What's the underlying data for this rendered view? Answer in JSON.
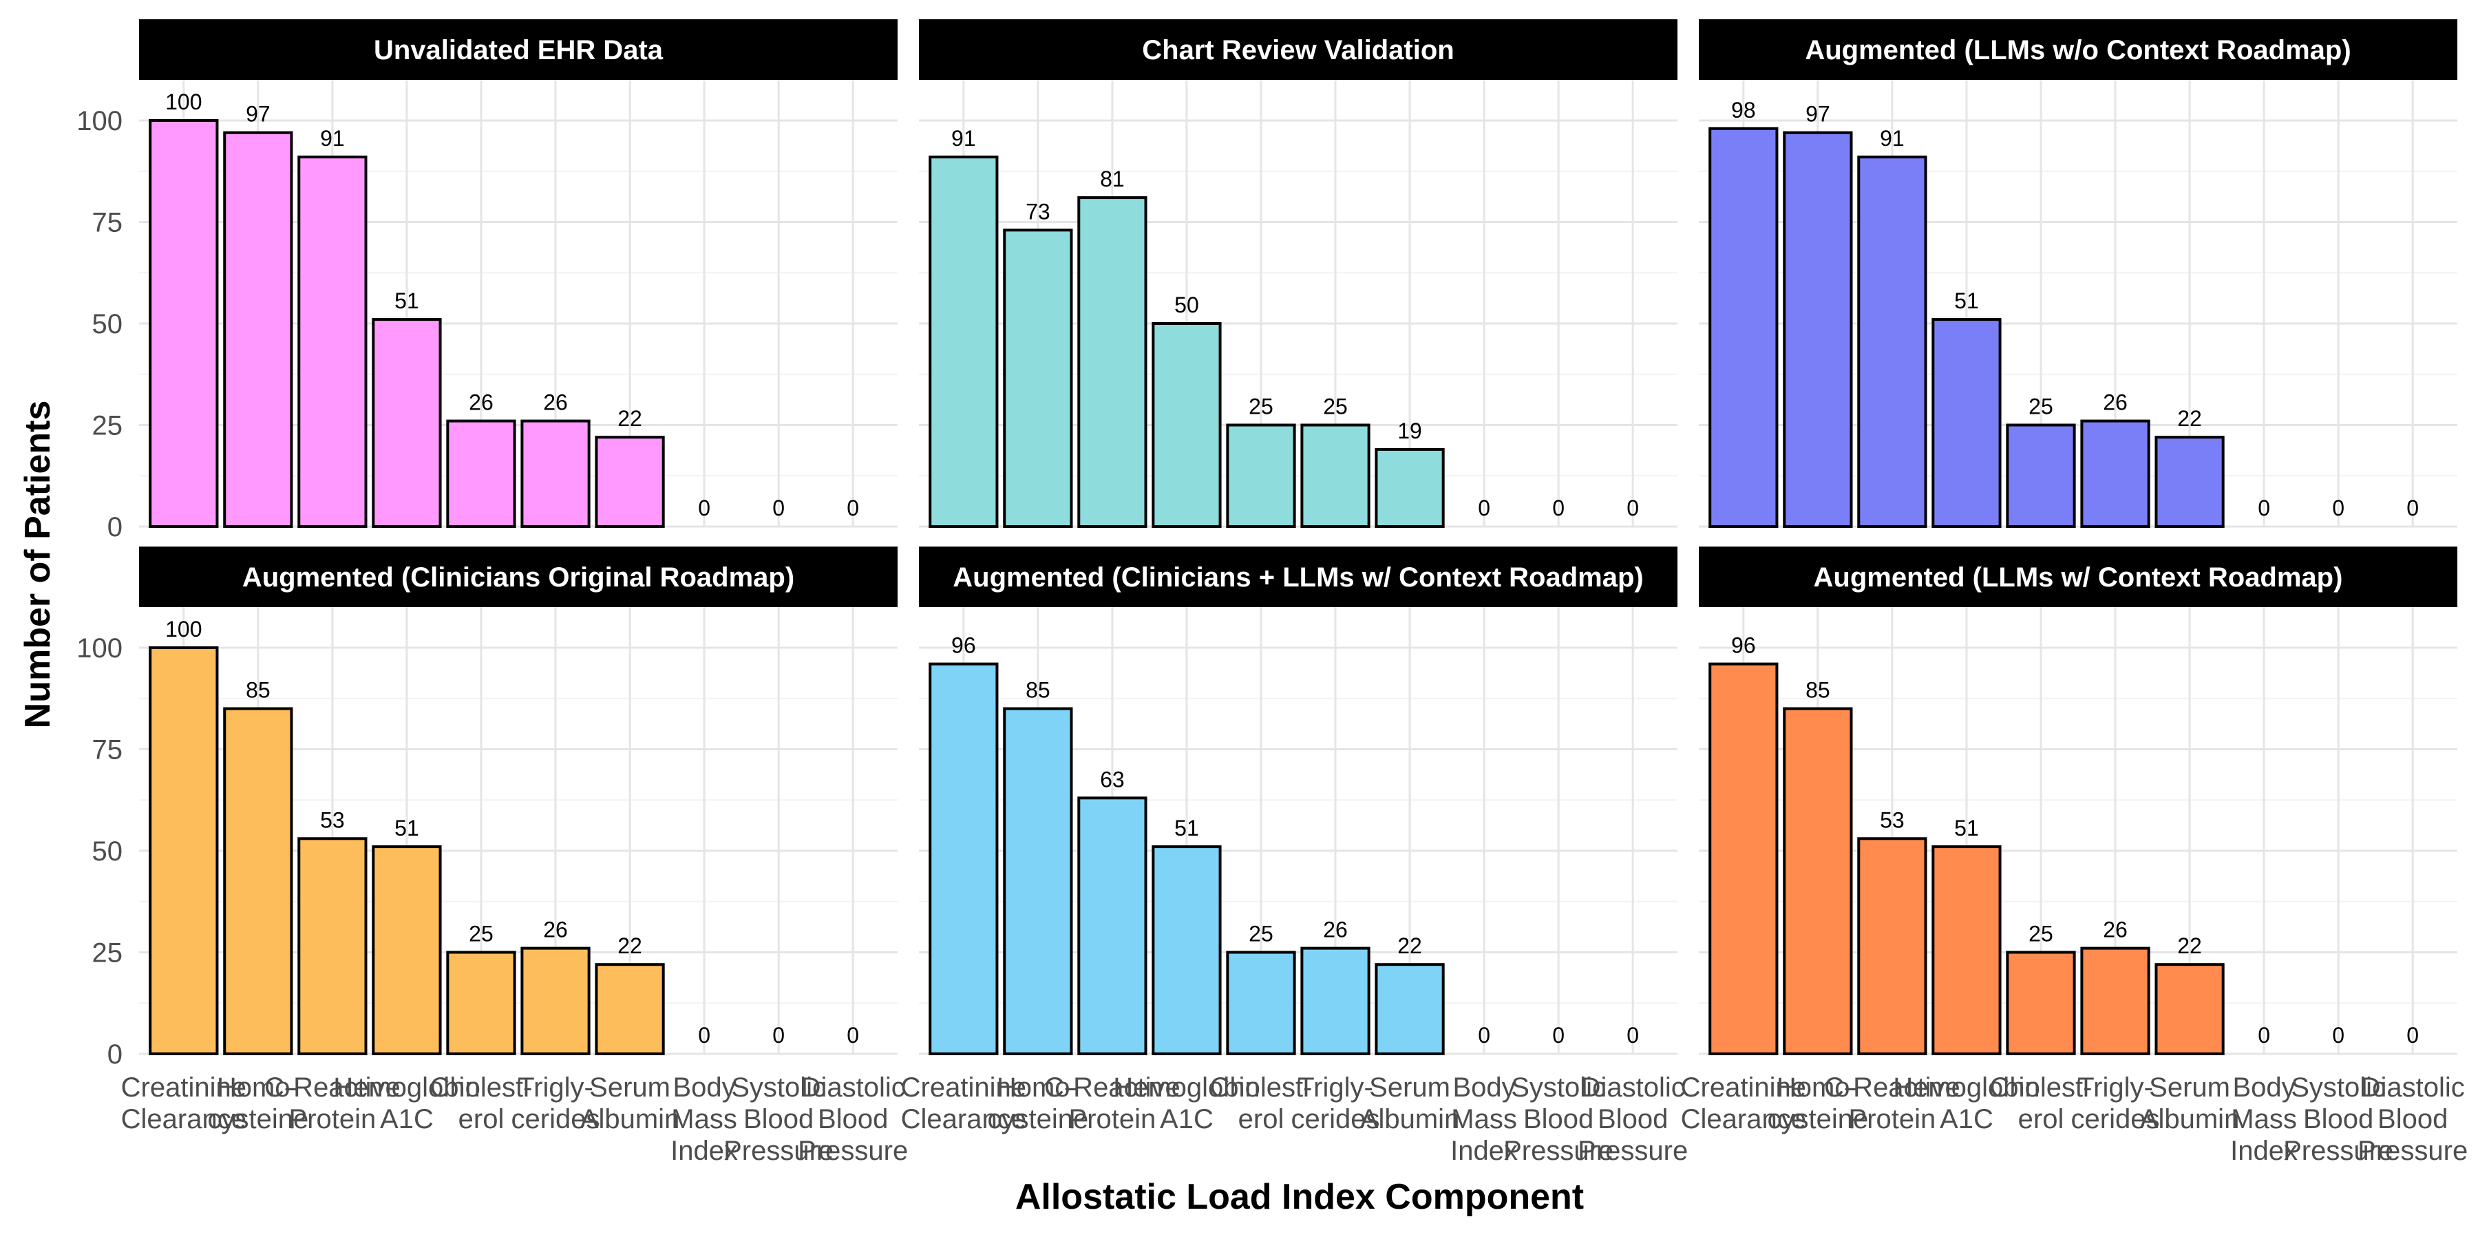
{
  "chart_data": {
    "type": "bar",
    "xlabel": "Allostatic Load Index Component",
    "ylabel": "Number of Patients",
    "ylim": [
      0,
      110
    ],
    "yticks": [
      0,
      25,
      50,
      75,
      100
    ],
    "grid": true,
    "categories": [
      "Creatinine Clearance",
      "Homocysteine",
      "C-Reactive Protein",
      "Hemoglobin A1C",
      "Cholesterol",
      "Triglycerides",
      "Serum Albumin",
      "Body Mass Index",
      "Systolic Blood Pressure",
      "Diastolic Blood Pressure"
    ],
    "category_tick_lines": [
      [
        "Creatinine",
        "Clearance"
      ],
      [
        "Homo-",
        "cysteine"
      ],
      [
        "C-Reactive",
        "Protein"
      ],
      [
        "Hemoglobin",
        "A1C"
      ],
      [
        "Cholest-",
        "erol"
      ],
      [
        "Trigly-",
        "cerides"
      ],
      [
        "Serum",
        "Albumin"
      ],
      [
        "Body",
        "Mass",
        "Index"
      ],
      [
        "Systolic",
        "Blood",
        "Pressure"
      ],
      [
        "Diastolic",
        "Blood",
        "Pressure"
      ]
    ],
    "facets": [
      {
        "title": "Unvalidated EHR Data",
        "color": "#ff99ff",
        "values": [
          100,
          97,
          91,
          51,
          26,
          26,
          22,
          0,
          0,
          0
        ]
      },
      {
        "title": "Chart Review Validation",
        "color": "#8edcdc",
        "values": [
          91,
          73,
          81,
          50,
          25,
          25,
          19,
          0,
          0,
          0
        ]
      },
      {
        "title": "Augmented (LLMs w/o Context Roadmap)",
        "color": "#7b7ff7",
        "values": [
          98,
          97,
          91,
          51,
          25,
          26,
          22,
          0,
          0,
          0
        ]
      },
      {
        "title": "Augmented (Clinicians Original Roadmap)",
        "color": "#fdbd5a",
        "values": [
          100,
          85,
          53,
          51,
          25,
          26,
          22,
          0,
          0,
          0
        ]
      },
      {
        "title": "Augmented (Clinicians + LLMs w/ Context Roadmap)",
        "color": "#7ed3f7",
        "values": [
          96,
          85,
          63,
          51,
          25,
          26,
          22,
          0,
          0,
          0
        ]
      },
      {
        "title": "Augmented (LLMs w/ Context Roadmap)",
        "color": "#ff8b4f",
        "values": [
          96,
          85,
          53,
          51,
          25,
          26,
          22,
          0,
          0,
          0
        ]
      }
    ]
  }
}
